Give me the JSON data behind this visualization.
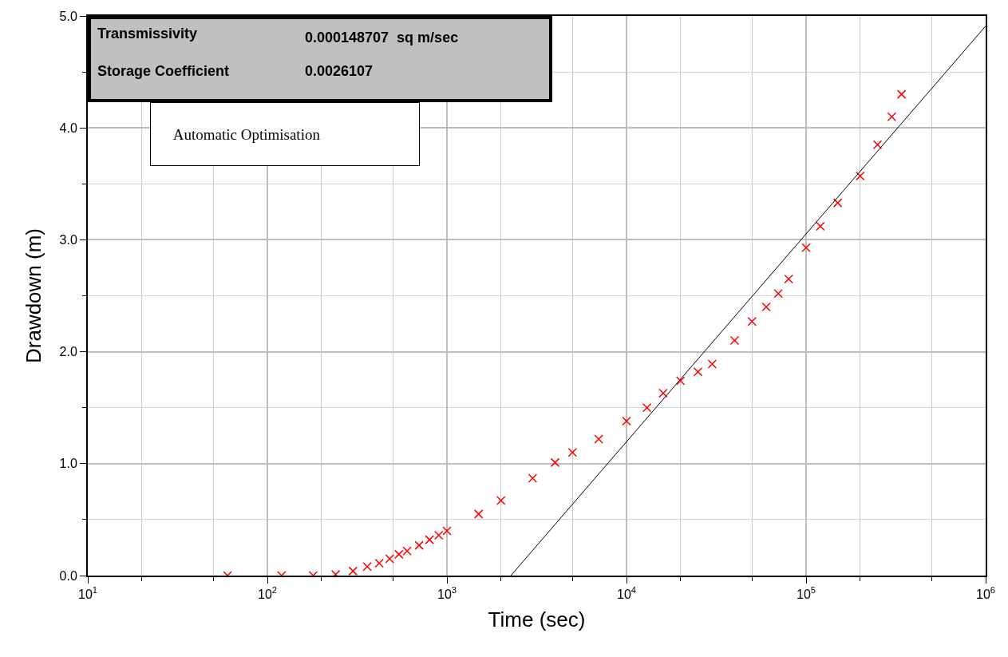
{
  "chart_data": {
    "type": "scatter",
    "xlabel": "Time (sec)",
    "ylabel": "Drawdown (m)",
    "log": "x",
    "grid": true,
    "legend": false,
    "marker": "cross",
    "xlim": [
      10,
      1000000
    ],
    "xticks": [
      {
        "value": 10,
        "label": "10$^{1}$"
      },
      {
        "value": 100,
        "label": "10$^{2}$"
      },
      {
        "value": 1000,
        "label": "10$^{3}$"
      },
      {
        "value": 10000,
        "label": "10$^{4}$"
      },
      {
        "value": 100000,
        "label": "10$^{5}$"
      },
      {
        "value": 1000000,
        "label": "10$^{6}$"
      }
    ],
    "ylim": [
      0,
      5
    ],
    "yticks": [
      {
        "value": 0,
        "label": "0.0"
      },
      {
        "value": 1,
        "label": "1.0"
      },
      {
        "value": 2,
        "label": "2.0"
      },
      {
        "value": 3,
        "label": "3.0"
      },
      {
        "value": 4,
        "label": "4.0"
      },
      {
        "value": 5,
        "label": "5.0"
      }
    ],
    "series": [
      {
        "color": "#ff0000",
        "x": [
          60,
          120,
          180,
          240,
          300,
          360,
          420,
          480,
          540,
          600,
          700,
          800,
          900,
          1000,
          1500,
          2000,
          3000,
          4000,
          5000,
          7000,
          10000,
          13000,
          16000,
          20000,
          25000,
          30000,
          40000,
          50000,
          60000,
          70000,
          80000,
          100000,
          120000,
          150000,
          200000,
          250000,
          300000,
          340000
        ],
        "values": [
          0,
          0,
          0,
          0.01,
          0.04,
          0.08,
          0.11,
          0.15,
          0.19,
          0.22,
          0.27,
          0.32,
          0.36,
          0.4,
          0.55,
          0.67,
          0.87,
          1.01,
          1.1,
          1.22,
          1.38,
          1.5,
          1.63,
          1.74,
          1.82,
          1.89,
          2.1,
          2.27,
          2.4,
          2.52,
          2.65,
          2.93,
          3.12,
          3.33,
          3.57,
          3.85,
          4.1,
          4.3
        ]
      },
      {
        "type": "line",
        "color": "#000000",
        "marker": "none",
        "x": [
          2270,
          1000000
        ],
        "values": [
          0,
          4.91
        ]
      }
    ],
    "annotations": [
      "Transmissivity",
      "0.000148707  sq m/sec",
      "Storage Coefficient",
      "0.0026107",
      "Automatic Optimisation"
    ]
  }
}
